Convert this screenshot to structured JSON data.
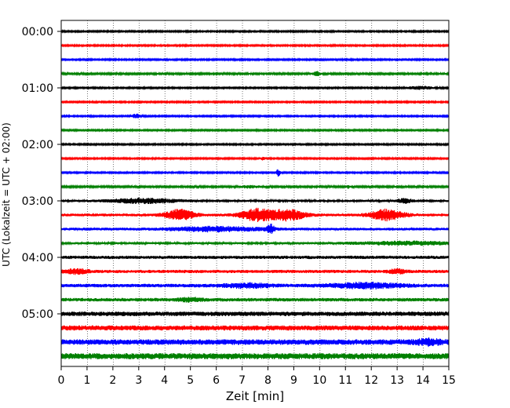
{
  "chart_data": {
    "type": "line",
    "subtype": "seismic-helicorder",
    "xlabel": "Zeit  [min]",
    "ylabel": "UTC (Lokalzeit = UTC + 02:00)",
    "xlim": [
      0,
      15
    ],
    "x_ticks": [
      0,
      1,
      2,
      3,
      4,
      5,
      6,
      7,
      8,
      9,
      10,
      11,
      12,
      13,
      14,
      15
    ],
    "y_tick_labels": [
      "00:00",
      "01:00",
      "02:00",
      "03:00",
      "04:00",
      "05:00"
    ],
    "y_tick_rows": [
      0,
      4,
      8,
      12,
      16,
      20
    ],
    "grid": {
      "vertical": true,
      "style": "dotted"
    },
    "row_colors": [
      "#000000",
      "#ff0000",
      "#0000ff",
      "#008000"
    ],
    "rows": [
      {
        "start": "00:00",
        "noise": 0.3,
        "events": []
      },
      {
        "start": "00:15",
        "noise": 0.3,
        "events": []
      },
      {
        "start": "00:30",
        "noise": 0.3,
        "events": []
      },
      {
        "start": "00:45",
        "noise": 0.35,
        "events": [
          {
            "t": 9.9,
            "amp": 0.8,
            "width": 0.1
          }
        ]
      },
      {
        "start": "01:00",
        "noise": 0.3,
        "events": [
          {
            "t": 13.9,
            "amp": 0.5,
            "width": 0.4
          }
        ]
      },
      {
        "start": "01:15",
        "noise": 0.3,
        "events": []
      },
      {
        "start": "01:30",
        "noise": 0.3,
        "events": [
          {
            "t": 2.9,
            "amp": 0.8,
            "width": 0.1
          }
        ]
      },
      {
        "start": "01:45",
        "noise": 0.3,
        "events": []
      },
      {
        "start": "02:00",
        "noise": 0.3,
        "events": []
      },
      {
        "start": "02:15",
        "noise": 0.3,
        "events": [
          {
            "t": 7.8,
            "amp": 0.5,
            "width": 0.08
          }
        ]
      },
      {
        "start": "02:30",
        "noise": 0.3,
        "events": [
          {
            "t": 8.4,
            "amp": 1.4,
            "width": 0.05
          }
        ]
      },
      {
        "start": "02:45",
        "noise": 0.35,
        "events": [
          {
            "t": 7.3,
            "amp": 0.4,
            "width": 0.3
          },
          {
            "t": 11.1,
            "amp": 0.5,
            "width": 0.05
          }
        ]
      },
      {
        "start": "03:00",
        "noise": 0.45,
        "events": [
          {
            "t": 3.2,
            "amp": 0.9,
            "width": 0.9
          },
          {
            "t": 13.3,
            "amp": 0.8,
            "width": 0.2
          }
        ]
      },
      {
        "start": "03:15",
        "noise": 0.55,
        "events": [
          {
            "t": 4.6,
            "amp": 2.0,
            "width": 0.4
          },
          {
            "t": 7.6,
            "amp": 2.3,
            "width": 0.45
          },
          {
            "t": 8.8,
            "amp": 2.0,
            "width": 0.45
          },
          {
            "t": 12.6,
            "amp": 2.0,
            "width": 0.45
          }
        ]
      },
      {
        "start": "03:30",
        "noise": 0.55,
        "events": [
          {
            "t": 6.0,
            "amp": 0.8,
            "width": 1.2
          },
          {
            "t": 8.1,
            "amp": 1.6,
            "width": 0.1
          }
        ]
      },
      {
        "start": "03:45",
        "noise": 0.45,
        "events": [
          {
            "t": 13.5,
            "amp": 0.6,
            "width": 1.5
          }
        ]
      },
      {
        "start": "04:00",
        "noise": 0.65,
        "events": []
      },
      {
        "start": "04:15",
        "noise": 0.65,
        "events": [
          {
            "t": 0.6,
            "amp": 0.8,
            "width": 0.3
          },
          {
            "t": 13.0,
            "amp": 0.8,
            "width": 0.2
          }
        ]
      },
      {
        "start": "04:30",
        "noise": 0.7,
        "events": [
          {
            "t": 7.2,
            "amp": 0.7,
            "width": 0.6
          },
          {
            "t": 11.8,
            "amp": 0.9,
            "width": 0.9
          }
        ]
      },
      {
        "start": "04:45",
        "noise": 0.7,
        "events": [
          {
            "t": 5.0,
            "amp": 0.6,
            "width": 0.3
          }
        ]
      },
      {
        "start": "05:00",
        "noise": 0.9,
        "events": []
      },
      {
        "start": "05:15",
        "noise": 1.0,
        "events": []
      },
      {
        "start": "05:30",
        "noise": 1.1,
        "events": [
          {
            "t": 14.2,
            "amp": 0.8,
            "width": 0.3
          }
        ]
      },
      {
        "start": "05:45",
        "noise": 1.2,
        "events": []
      }
    ]
  }
}
